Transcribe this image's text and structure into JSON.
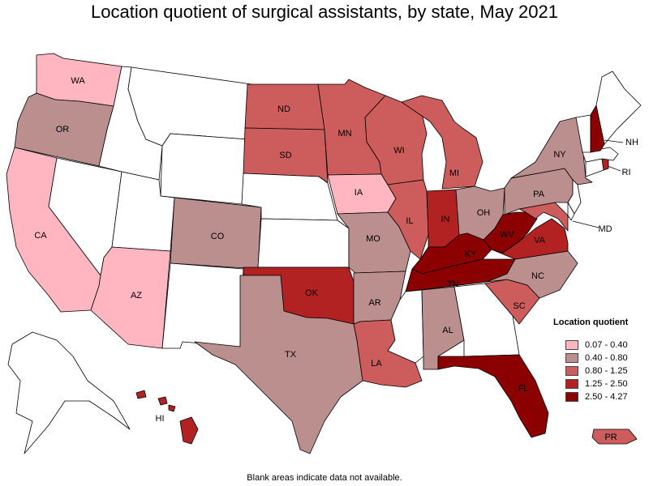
{
  "title": "Location quotient of surgical assistants, by state, May 2021",
  "footer_note": "Blank areas indicate data not available.",
  "legend": {
    "title": "Location quotient",
    "classes": [
      {
        "range": "0.07 - 0.40",
        "color": "#ffb6c1"
      },
      {
        "range": "0.40 - 0.80",
        "color": "#bc8f8f"
      },
      {
        "range": "0.80 - 1.25",
        "color": "#cd5c5c"
      },
      {
        "range": "1.25 - 2.50",
        "color": "#b22222"
      },
      {
        "range": "2.50 - 4.27",
        "color": "#8b0000"
      }
    ]
  },
  "no_data_color": "#ffffff",
  "states": [
    {
      "abbr": "WA",
      "class": 0
    },
    {
      "abbr": "OR",
      "class": 1
    },
    {
      "abbr": "CA",
      "class": 0
    },
    {
      "abbr": "AZ",
      "class": 0
    },
    {
      "abbr": "CO",
      "class": 1
    },
    {
      "abbr": "ND",
      "class": 2
    },
    {
      "abbr": "SD",
      "class": 2
    },
    {
      "abbr": "MN",
      "class": 2
    },
    {
      "abbr": "IA",
      "class": 0
    },
    {
      "abbr": "MO",
      "class": 1
    },
    {
      "abbr": "OK",
      "class": 3
    },
    {
      "abbr": "TX",
      "class": 1
    },
    {
      "abbr": "AR",
      "class": 1
    },
    {
      "abbr": "LA",
      "class": 2
    },
    {
      "abbr": "WI",
      "class": 2
    },
    {
      "abbr": "IL",
      "class": 2
    },
    {
      "abbr": "MI",
      "class": 2
    },
    {
      "abbr": "IN",
      "class": 3
    },
    {
      "abbr": "OH",
      "class": 1
    },
    {
      "abbr": "KY",
      "class": 4
    },
    {
      "abbr": "TN",
      "class": 4
    },
    {
      "abbr": "AL",
      "class": 1
    },
    {
      "abbr": "FL",
      "class": 4
    },
    {
      "abbr": "SC",
      "class": 2
    },
    {
      "abbr": "NC",
      "class": 1
    },
    {
      "abbr": "VA",
      "class": 3
    },
    {
      "abbr": "WV",
      "class": 4
    },
    {
      "abbr": "PA",
      "class": 1
    },
    {
      "abbr": "NY",
      "class": 1
    },
    {
      "abbr": "MD",
      "class": 2
    },
    {
      "abbr": "NH",
      "class": 4
    },
    {
      "abbr": "RI",
      "class": 3
    },
    {
      "abbr": "HI",
      "class": 3
    },
    {
      "abbr": "PR",
      "class": 2
    }
  ],
  "blank_states": [
    "ID",
    "MT",
    "NV",
    "UT",
    "WY",
    "NE",
    "KS",
    "NM",
    "MS",
    "GA",
    "ME",
    "VT",
    "MA",
    "CT",
    "NJ",
    "DE",
    "AK"
  ]
}
